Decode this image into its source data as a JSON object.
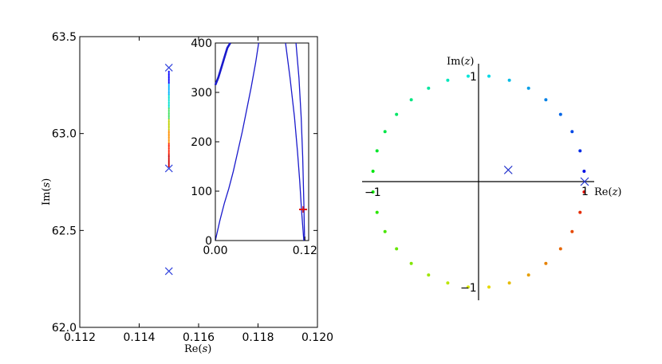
{
  "chart_data": [
    {
      "type": "scatter",
      "xlabel_main": "Re",
      "xlabel_var": "s",
      "ylabel_main": "Im",
      "ylabel_var": "s",
      "xlim": [
        0.112,
        0.12
      ],
      "ylim": [
        62.0,
        63.5
      ],
      "x_ticks": [
        0.112,
        0.114,
        0.116,
        0.118,
        0.12
      ],
      "x_tick_labels": [
        "0.112",
        "0.114",
        "0.116",
        "0.118",
        "0.120"
      ],
      "y_ticks": [
        62.0,
        62.5,
        63.0,
        63.5
      ],
      "y_tick_labels": [
        "62.0",
        "62.5",
        "63.0",
        "63.5"
      ],
      "crosses": [
        {
          "x": 0.115,
          "y": 63.34,
          "color": "#3344dd"
        },
        {
          "x": 0.115,
          "y": 62.82,
          "color": "#3344dd"
        },
        {
          "x": 0.115,
          "y": 62.29,
          "color": "#3344dd"
        }
      ],
      "dotted_path": {
        "x": 0.115,
        "y_start": 63.32,
        "y_end": 62.83,
        "colors": [
          "#0000ff",
          "#00b0ff",
          "#00e0d0",
          "#40e060",
          "#c0d000",
          "#ff9000",
          "#ff2000",
          "#cc0000"
        ]
      }
    },
    {
      "type": "line",
      "xlim": [
        0.0,
        0.125
      ],
      "ylim": [
        0,
        400
      ],
      "x_ticks": [
        0.0,
        0.12
      ],
      "x_tick_labels": [
        "0.00",
        "0.12"
      ],
      "y_ticks": [
        0,
        100,
        200,
        300,
        400
      ],
      "y_tick_labels": [
        "0",
        "100",
        "200",
        "300",
        "400"
      ],
      "line_color": "#1a1acc",
      "series": [
        {
          "x": [
            0.0,
            0.004,
            0.008,
            0.012,
            0.016,
            0.02
          ],
          "y": [
            315,
            330,
            350,
            370,
            390,
            405
          ],
          "thick": true
        },
        {
          "x": [
            0.0,
            0.006,
            0.012,
            0.018,
            0.024,
            0.03,
            0.036,
            0.042,
            0.048,
            0.054,
            0.058
          ],
          "y": [
            0,
            40,
            75,
            105,
            140,
            180,
            220,
            265,
            310,
            360,
            400
          ]
        },
        {
          "x": [
            0.094,
            0.1,
            0.106,
            0.11,
            0.113,
            0.1155,
            0.1175,
            0.1185
          ],
          "y": [
            400,
            330,
            250,
            180,
            120,
            60,
            20,
            0
          ]
        },
        {
          "x": [
            0.108,
            0.112,
            0.115,
            0.117,
            0.1185,
            0.1195
          ],
          "y": [
            400,
            330,
            250,
            170,
            80,
            0
          ]
        }
      ],
      "marker": {
        "x": 0.1175,
        "y": 63,
        "color": "#dd1111"
      }
    },
    {
      "type": "scatter",
      "xlabel_main": "Re",
      "xlabel_var": "z",
      "ylabel_main": "Im",
      "ylabel_var": "z",
      "xlim": [
        -1.1,
        1.1
      ],
      "ylim": [
        -1.1,
        1.1
      ],
      "tick_labels": {
        "x_neg": "−1",
        "x_pos": "1",
        "y_pos": "1",
        "y_neg": "−1"
      },
      "unit_circle_points": 32,
      "crosses": [
        {
          "x": 0.28,
          "y": 0.11,
          "color": "#2233cc"
        },
        {
          "x": 1.0,
          "y": 0.0,
          "color": "#2233cc"
        }
      ]
    }
  ]
}
